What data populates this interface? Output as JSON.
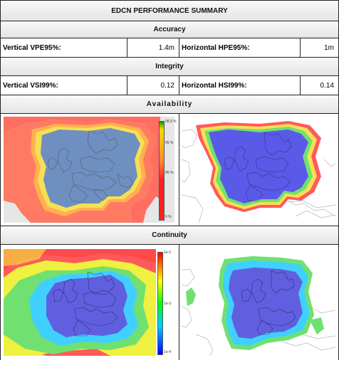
{
  "title": "EDCN PERFORMANCE SUMMARY",
  "sections": {
    "accuracy": "Accuracy",
    "integrity": "Integrity",
    "availability": "Availability",
    "continuity": "Continuity"
  },
  "accuracy": {
    "vertical_label": "Vertical VPE95%:",
    "vertical_value": "1.4m",
    "horizontal_label": "Horizontal HPE95%:",
    "horizontal_value": "1m"
  },
  "integrity": {
    "vertical_label": "Vertical VSI99%:",
    "vertical_value": "0.12",
    "horizontal_label": "Horizontal HSI99%:",
    "horizontal_value": "0.14"
  },
  "availability_legend": {
    "ticks": [
      "99,9 %",
      "99 %",
      "95 %",
      "0 %"
    ],
    "colors": [
      "#00a000",
      "#ffd800",
      "#ff2020",
      "#ff2020"
    ]
  },
  "continuity_legend": {
    "ticks": [
      "1e-2",
      "1e-3",
      "1e-4"
    ],
    "colors": [
      "#ff0000",
      "#ffff00",
      "#00ff00",
      "#00d0ff",
      "#0000ff"
    ]
  },
  "map_colors": {
    "land": "#e6e6e6",
    "sea_white": "#ffffff",
    "coast": "#9a9a9a",
    "border": "#6b6b6b",
    "avail_outer": "#ff6e60",
    "avail_mid": "#ffb050",
    "avail_ring": "#f5e055",
    "avail_inner": "#6f8fc0",
    "avail_right_inner": "#5a5ae8",
    "cont_red": "#ff5a5a",
    "cont_yellow": "#f0f040",
    "cont_green": "#70e070",
    "cont_cyan": "#40d0ff",
    "cont_blue": "#5f5fe0"
  }
}
